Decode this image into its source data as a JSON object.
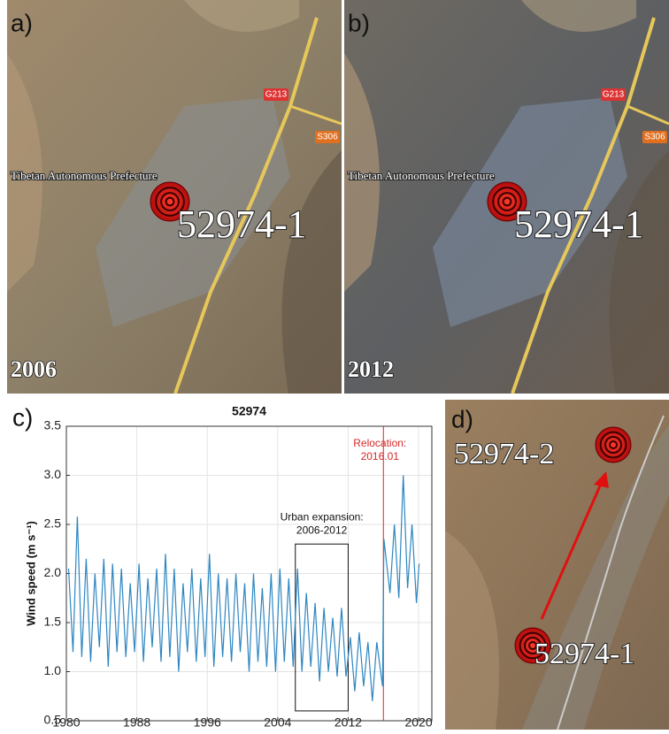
{
  "panels": [
    {
      "label": "a)",
      "year": "2006",
      "station": "52974-1",
      "map_labels": [
        "G213",
        "S306",
        "Tibetan Autonomous Prefecture"
      ]
    },
    {
      "label": "b)",
      "year": "2012",
      "station": "52974-1",
      "map_labels": [
        "G213",
        "S306",
        "Tibetan Autonomous Prefecture"
      ]
    },
    {
      "label": "d)",
      "stations": [
        "52974-2",
        "52974-1"
      ]
    }
  ],
  "chart_data": {
    "type": "line",
    "panel_label": "c)",
    "title": "52974",
    "ylabel": "Wind speed (m s⁻¹)",
    "xlim": [
      1980,
      2021.5
    ],
    "ylim": [
      0.5,
      3.5
    ],
    "xticks": [
      1980,
      1988,
      1996,
      2004,
      2012,
      2020
    ],
    "yticks": [
      0.5,
      {
        "value": 1,
        "label": "1.0"
      },
      1.5,
      {
        "value": 2,
        "label": "2.0"
      },
      2.5,
      {
        "value": 3,
        "label": "3.0"
      },
      3.5
    ],
    "grid": true,
    "series": [
      {
        "name": "52974",
        "color": "#2e86c1",
        "x": [
          1980.25,
          1980.75,
          1981.25,
          1981.75,
          1982.25,
          1982.75,
          1983.25,
          1983.75,
          1984.25,
          1984.75,
          1985.25,
          1985.75,
          1986.25,
          1986.75,
          1987.25,
          1987.75,
          1988.25,
          1988.75,
          1989.25,
          1989.75,
          1990.25,
          1990.75,
          1991.25,
          1991.75,
          1992.25,
          1992.75,
          1993.25,
          1993.75,
          1994.25,
          1994.75,
          1995.25,
          1995.75,
          1996.25,
          1996.75,
          1997.25,
          1997.75,
          1998.25,
          1998.75,
          1999.25,
          1999.75,
          2000.25,
          2000.75,
          2001.25,
          2001.75,
          2002.25,
          2002.75,
          2003.25,
          2003.75,
          2004.25,
          2004.75,
          2005.25,
          2005.75,
          2006.25,
          2006.75,
          2007.25,
          2007.75,
          2008.25,
          2008.75,
          2009.25,
          2009.75,
          2010.25,
          2010.75,
          2011.25,
          2011.75,
          2012.25,
          2012.75,
          2013.25,
          2013.75,
          2014.25,
          2014.75,
          2015.25,
          2015.9,
          2016.05,
          2016.75,
          2017.25,
          2017.75,
          2018.25,
          2018.75,
          2019.25,
          2019.75,
          2020.05
        ],
        "values": [
          2.05,
          1.2,
          2.58,
          1.15,
          2.15,
          1.1,
          2.0,
          1.25,
          2.15,
          1.05,
          2.1,
          1.2,
          2.05,
          1.15,
          1.9,
          1.2,
          2.1,
          1.1,
          1.95,
          1.25,
          2.05,
          1.1,
          2.2,
          1.15,
          2.05,
          1.0,
          1.9,
          1.2,
          2.05,
          1.1,
          1.95,
          1.15,
          2.2,
          1.05,
          2.0,
          1.15,
          1.95,
          1.1,
          2.0,
          1.2,
          1.9,
          1.0,
          2.0,
          1.1,
          1.85,
          1.05,
          2.0,
          1.0,
          2.05,
          1.1,
          1.95,
          1.05,
          2.05,
          1.0,
          1.8,
          1.05,
          1.7,
          0.9,
          1.65,
          1.0,
          1.55,
          0.95,
          1.65,
          0.95,
          1.35,
          0.8,
          1.4,
          0.85,
          1.3,
          0.7,
          1.3,
          0.85,
          2.35,
          1.8,
          2.5,
          1.75,
          3.0,
          1.85,
          2.5,
          1.7,
          2.1
        ]
      }
    ],
    "annotations": [
      {
        "text": [
          "Urban expansion:",
          "2006-2012"
        ],
        "box": {
          "xlim": [
            2006,
            2012
          ],
          "ylim": [
            0.6,
            2.3
          ]
        }
      },
      {
        "text": [
          "Relocation:",
          "2016.01"
        ],
        "x": 2016,
        "color": "#d62728"
      }
    ]
  }
}
